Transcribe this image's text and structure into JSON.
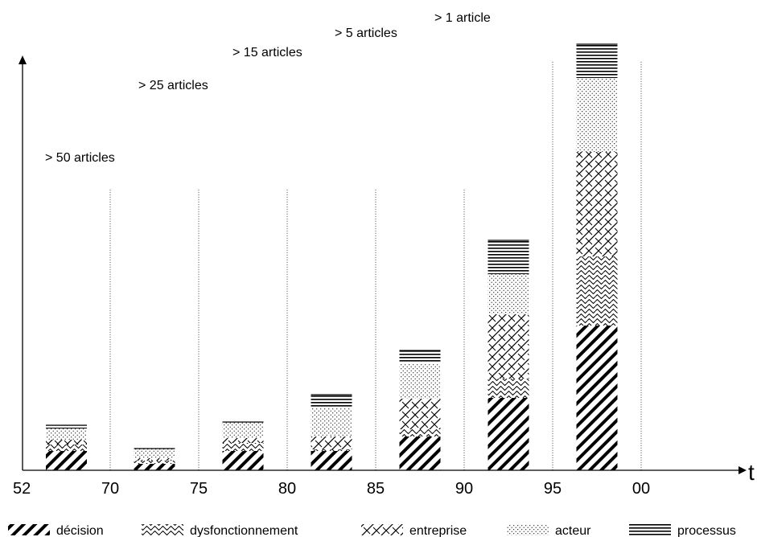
{
  "chart_data": {
    "type": "bar",
    "stacked": true,
    "x_axis_label": "t",
    "x_tick_labels": [
      "52",
      "70",
      "75",
      "80",
      "85",
      "90",
      "95",
      "00"
    ],
    "categories": [
      "52-70",
      "70-75",
      "75-80",
      "80-85",
      "85-90",
      "90-95",
      "95-00"
    ],
    "period_annotations": [
      "> 50 articles",
      "> 25 articles",
      "> 15 articles",
      "> 5 articles",
      "> 1 article"
    ],
    "annotation_periods": [
      "52-70",
      "70-75",
      "75-80",
      "80-85",
      "85-90"
    ],
    "series": [
      {
        "name": "décision",
        "pattern": "diagonal-thick",
        "values": [
          24,
          8,
          24,
          24,
          42,
          90,
          180
        ]
      },
      {
        "name": "dysfonctionnement",
        "pattern": "waves",
        "values": [
          8,
          4,
          10,
          2,
          9,
          24,
          86
        ]
      },
      {
        "name": "entreprise",
        "pattern": "diagonal-cross",
        "values": [
          6,
          3,
          6,
          16,
          38,
          80,
          130
        ]
      },
      {
        "name": "acteur",
        "pattern": "dots",
        "values": [
          14,
          12,
          20,
          36,
          44,
          50,
          92
        ]
      },
      {
        "name": "processus",
        "pattern": "horizontal-lines",
        "values": [
          4,
          0,
          0,
          16,
          16,
          42,
          42
        ]
      }
    ],
    "ylim": [
      0,
      535
    ],
    "grid": "vertical dotted separators",
    "legend_position": "bottom"
  }
}
